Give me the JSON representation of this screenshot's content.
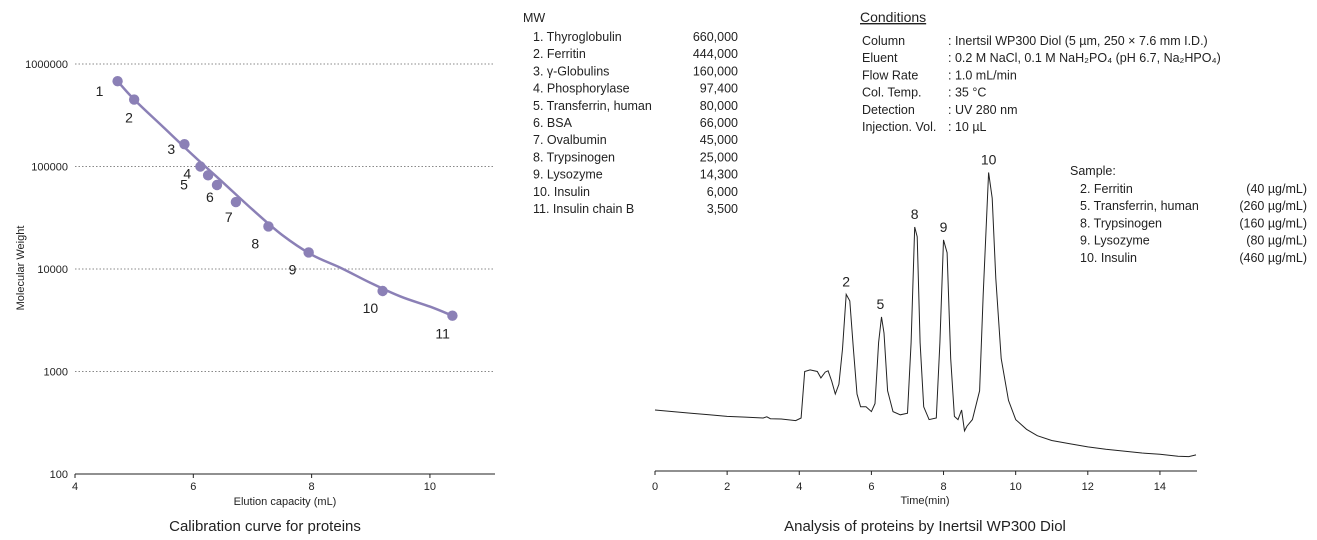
{
  "calibration": {
    "caption": "Calibration curve for proteins",
    "xlabel": "Elution capacity (mL)",
    "ylabel": "Molecular Weight",
    "x_ticks": [
      "4",
      "6",
      "8",
      "10"
    ],
    "y_ticks": [
      "100",
      "1000",
      "10000",
      "100000",
      "1000000"
    ],
    "colors": {
      "curve": "#8b80b6",
      "point": "#8b80b6",
      "grid": "#999999"
    }
  },
  "mw_table": {
    "header": "MW",
    "rows": [
      {
        "name": "1. Thyroglobulin",
        "value": "660,000"
      },
      {
        "name": "2. Ferritin",
        "value": "444,000"
      },
      {
        "name": "3. γ-Globulins",
        "value": "160,000"
      },
      {
        "name": "4. Phosphorylase",
        "value": "97,400"
      },
      {
        "name": "5. Transferrin, human",
        "value": "80,000"
      },
      {
        "name": "6. BSA",
        "value": "66,000"
      },
      {
        "name": "7. Ovalbumin",
        "value": "45,000"
      },
      {
        "name": "8. Trypsinogen",
        "value": "25,000"
      },
      {
        "name": "9. Lysozyme",
        "value": "14,300"
      },
      {
        "name": "10. Insulin",
        "value": "6,000"
      },
      {
        "name": "11. Insulin chain B",
        "value": "3,500"
      }
    ]
  },
  "conditions": {
    "title": "Conditions",
    "rows": [
      {
        "label": "Column",
        "value": ": Inertsil WP300 Diol (5 µm, 250 × 7.6 mm I.D.)"
      },
      {
        "label": "Eluent",
        "value": ": 0.2 M NaCl, 0.1 M NaH₂PO₄ (pH 6.7, Na₂HPO₄)"
      },
      {
        "label": "Flow Rate",
        "value": ": 1.0 mL/min"
      },
      {
        "label": "Col. Temp.",
        "value": ": 35 °C"
      },
      {
        "label": "Detection",
        "value": ": UV 280 nm"
      },
      {
        "label": "Injection. Vol.",
        "value": ": 10 µL"
      }
    ]
  },
  "sample": {
    "title": "Sample:",
    "rows": [
      {
        "name": "2. Ferritin",
        "conc": "(40 µg/mL)"
      },
      {
        "name": "5. Transferrin, human",
        "conc": "(260 µg/mL)"
      },
      {
        "name": "8. Trypsinogen",
        "conc": "(160 µg/mL)"
      },
      {
        "name": "9. Lysozyme",
        "conc": "(80 µg/mL)"
      },
      {
        "name": "10. Insulin",
        "conc": "(460 µg/mL)"
      }
    ]
  },
  "chromatogram": {
    "caption": "Analysis of proteins by Inertsil WP300 Diol",
    "xlabel": "Time(min)",
    "x_ticks": [
      "0",
      "2",
      "4",
      "6",
      "8",
      "10",
      "12",
      "14"
    ]
  },
  "chart_data": [
    {
      "type": "scatter",
      "title": "Calibration curve for proteins",
      "xlabel": "Elution capacity (mL)",
      "ylabel": "Molecular Weight",
      "xlim": [
        4,
        11.1
      ],
      "ylim": [
        100,
        1000000
      ],
      "y_scale": "log",
      "grid": "horizontal dotted",
      "points": [
        {
          "label": "1",
          "x": 4.72,
          "y": 680000
        },
        {
          "label": "2",
          "x": 5.0,
          "y": 450000
        },
        {
          "label": "3",
          "x": 5.85,
          "y": 165000
        },
        {
          "label": "4",
          "x": 6.12,
          "y": 100000
        },
        {
          "label": "5",
          "x": 6.25,
          "y": 82000
        },
        {
          "label": "6",
          "x": 6.4,
          "y": 66000
        },
        {
          "label": "7",
          "x": 6.72,
          "y": 45000
        },
        {
          "label": "8",
          "x": 7.27,
          "y": 26000
        },
        {
          "label": "9",
          "x": 7.95,
          "y": 14500
        },
        {
          "label": "10",
          "x": 9.2,
          "y": 6100
        },
        {
          "label": "11",
          "x": 10.38,
          "y": 3500
        }
      ],
      "curve": [
        [
          4.72,
          680000
        ],
        [
          5.0,
          450000
        ],
        [
          5.5,
          240000
        ],
        [
          6.0,
          128000
        ],
        [
          6.5,
          70000
        ],
        [
          7.0,
          38000
        ],
        [
          7.5,
          21500
        ],
        [
          8.0,
          13800
        ],
        [
          8.5,
          10200
        ],
        [
          9.0,
          7300
        ],
        [
          9.5,
          5400
        ],
        [
          10.0,
          4300
        ],
        [
          10.38,
          3500
        ]
      ]
    },
    {
      "type": "line",
      "title": "Analysis of proteins by Inertsil WP300 Diol",
      "xlabel": "Time(min)",
      "xlim": [
        0,
        15
      ],
      "ylim": [
        0,
        100
      ],
      "peaks": [
        {
          "label": "2",
          "time": 5.3,
          "height": 55
        },
        {
          "label": "5",
          "time": 6.25,
          "height": 48
        },
        {
          "label": "8",
          "time": 7.2,
          "height": 76
        },
        {
          "label": "9",
          "time": 8.0,
          "height": 72
        },
        {
          "label": "10",
          "time": 9.25,
          "height": 93
        }
      ],
      "trace": [
        [
          0,
          19
        ],
        [
          0.5,
          18.5
        ],
        [
          1,
          18
        ],
        [
          1.5,
          17.5
        ],
        [
          2,
          17
        ],
        [
          2.5,
          16.8
        ],
        [
          3,
          16.5
        ],
        [
          3.1,
          16.9
        ],
        [
          3.2,
          16.3
        ],
        [
          3.5,
          16.2
        ],
        [
          3.9,
          15.7
        ],
        [
          4.05,
          16.5
        ],
        [
          4.15,
          31
        ],
        [
          4.3,
          31.5
        ],
        [
          4.5,
          31
        ],
        [
          4.6,
          29
        ],
        [
          4.72,
          30.8
        ],
        [
          4.8,
          31.2
        ],
        [
          4.9,
          28
        ],
        [
          5.0,
          24
        ],
        [
          5.1,
          27
        ],
        [
          5.2,
          38
        ],
        [
          5.3,
          55
        ],
        [
          5.4,
          53
        ],
        [
          5.5,
          38
        ],
        [
          5.6,
          24
        ],
        [
          5.7,
          20
        ],
        [
          5.85,
          20
        ],
        [
          6.0,
          18.5
        ],
        [
          6.1,
          21
        ],
        [
          6.2,
          40
        ],
        [
          6.28,
          48
        ],
        [
          6.35,
          43
        ],
        [
          6.45,
          25
        ],
        [
          6.6,
          18.5
        ],
        [
          6.8,
          17.5
        ],
        [
          7.0,
          18
        ],
        [
          7.1,
          40
        ],
        [
          7.2,
          76
        ],
        [
          7.27,
          73
        ],
        [
          7.35,
          40
        ],
        [
          7.45,
          20
        ],
        [
          7.6,
          16
        ],
        [
          7.8,
          16.5
        ],
        [
          7.9,
          40
        ],
        [
          8.0,
          72
        ],
        [
          8.1,
          68
        ],
        [
          8.2,
          35
        ],
        [
          8.3,
          17
        ],
        [
          8.4,
          16
        ],
        [
          8.5,
          19
        ],
        [
          8.58,
          12.5
        ],
        [
          8.65,
          14
        ],
        [
          8.8,
          16
        ],
        [
          9.0,
          25
        ],
        [
          9.1,
          55
        ],
        [
          9.25,
          93
        ],
        [
          9.35,
          85
        ],
        [
          9.45,
          60
        ],
        [
          9.6,
          35
        ],
        [
          9.8,
          22
        ],
        [
          10,
          16
        ],
        [
          10.3,
          13
        ],
        [
          10.6,
          11
        ],
        [
          11,
          9.5
        ],
        [
          11.5,
          8.5
        ],
        [
          12,
          7.5
        ],
        [
          12.5,
          6.8
        ],
        [
          13,
          6.2
        ],
        [
          13.5,
          5.6
        ],
        [
          14,
          5.2
        ],
        [
          14.5,
          4.6
        ],
        [
          14.8,
          4.5
        ],
        [
          15,
          5
        ]
      ]
    }
  ]
}
